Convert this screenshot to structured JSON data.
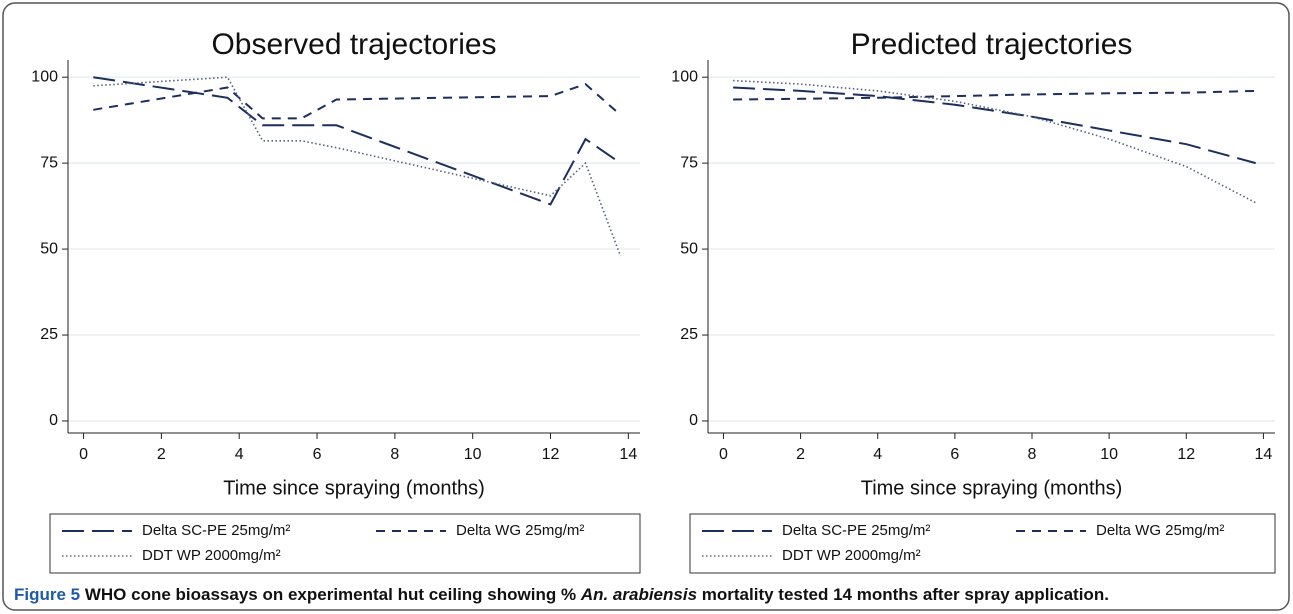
{
  "chart_data": [
    {
      "type": "line",
      "title": "Observed trajectories",
      "x_label": "Time since spraying (months)",
      "x": [
        0.25,
        3.7,
        4.6,
        5.6,
        6.5,
        12,
        12.9,
        13.8
      ],
      "series": [
        {
          "name": "Delta SC-PE 25mg/m²",
          "color": "#1c2f5c",
          "dash": "long",
          "values": [
            100,
            94,
            86,
            86,
            86,
            63,
            82,
            75
          ]
        },
        {
          "name": "Delta WG 25mg/m²",
          "color": "#1c2f5c",
          "dash": "short",
          "values": [
            90.5,
            97,
            88,
            88,
            93.5,
            94.5,
            98,
            89
          ]
        },
        {
          "name": "DDT WP 2000mg/m²",
          "color": "#55627a",
          "dash": "dot",
          "values": [
            97.5,
            100,
            81.5,
            81.5,
            79.5,
            65.5,
            75,
            48
          ]
        }
      ],
      "xlim": [
        -0.4,
        14.3
      ],
      "ylim": [
        -3.5,
        105
      ],
      "xticks": [
        0,
        2,
        4,
        6,
        8,
        10,
        12,
        14
      ],
      "yticks": [
        0,
        25,
        50,
        75,
        100
      ],
      "grid": true
    },
    {
      "type": "line",
      "title": "Predicted trajectories",
      "x_label": "Time since spraying (months)",
      "x": [
        0.25,
        2,
        4,
        6,
        8,
        10,
        12,
        13.8
      ],
      "series": [
        {
          "name": "Delta SC-PE 25mg/m²",
          "color": "#1c2f5c",
          "dash": "long",
          "values": [
            97,
            96,
            94.5,
            92,
            88.5,
            84.5,
            80.5,
            75
          ]
        },
        {
          "name": "Delta WG 25mg/m²",
          "color": "#1c2f5c",
          "dash": "short",
          "values": [
            93.5,
            93.7,
            94,
            94.5,
            95,
            95.3,
            95.5,
            96
          ]
        },
        {
          "name": "DDT WP 2000mg/m²",
          "color": "#55627a",
          "dash": "dot",
          "values": [
            99,
            98,
            96,
            93,
            88.5,
            82,
            74,
            63.5
          ]
        }
      ],
      "xlim": [
        -0.4,
        14.3
      ],
      "ylim": [
        -3.5,
        105
      ],
      "xticks": [
        0,
        2,
        4,
        6,
        8,
        10,
        12,
        14
      ],
      "yticks": [
        0,
        25,
        50,
        75,
        100
      ],
      "grid": true
    }
  ],
  "caption": {
    "label": "Figure 5",
    "text_before": "WHO cone bioassays on experimental hut ceiling showing %",
    "italic": "An. arabiensis",
    "text_after": "mortality tested 14 months after spray application."
  }
}
